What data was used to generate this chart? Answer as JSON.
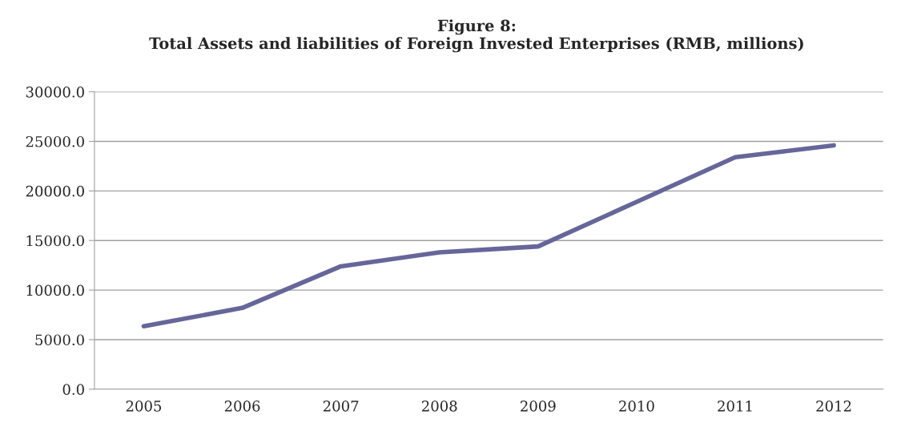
{
  "chart_data": {
    "type": "line",
    "title": "Figure 8:\nTotal Assets and liabilities of Foreign Invested Enterprises (RMB, millions)",
    "categories": [
      "2005",
      "2006",
      "2007",
      "2008",
      "2009",
      "2010",
      "2011",
      "2012"
    ],
    "series": [
      {
        "color": "#66669a",
        "values": [
          6350,
          8200,
          12400,
          13800,
          14400,
          18900,
          23400,
          24600
        ]
      }
    ],
    "ylim": [
      0,
      30000
    ],
    "yticks": [
      {
        "value": 0,
        "label": "0.0"
      },
      {
        "value": 5000,
        "label": "5000.0"
      },
      {
        "value": 10000,
        "label": "10000.0"
      },
      {
        "value": 15000,
        "label": "15000.0"
      },
      {
        "value": 20000,
        "label": "20000.0"
      },
      {
        "value": 25000,
        "label": "25000.0"
      },
      {
        "value": 30000,
        "label": "30000.0"
      }
    ],
    "grid": "y",
    "legend": false,
    "marker": "none",
    "line_style": "solid"
  }
}
